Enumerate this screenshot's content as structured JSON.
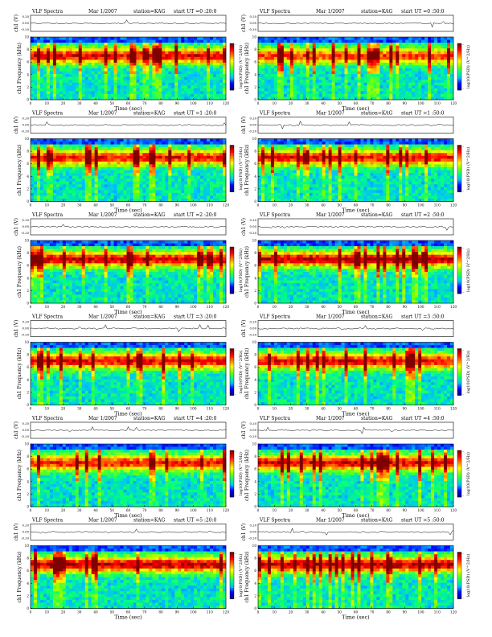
{
  "chart_data": [
    {
      "type": "heatmap",
      "title": "VLF Spectra",
      "date": "Mar 1/2007",
      "station": "station=KAG",
      "start_ut": "start  UT  =0 :20:0",
      "ch_label": "ch1 (V)",
      "ch_ticks": [
        "0.20",
        "0.00",
        "-0.20"
      ],
      "ylabel": "ch1 Frequency (kHz)",
      "xlabel": "Time (sec)",
      "xlim": [
        0,
        120
      ],
      "ylim": [
        0,
        10
      ],
      "xticks": [
        0,
        10,
        20,
        30,
        40,
        50,
        60,
        70,
        80,
        90,
        100,
        110,
        120
      ],
      "yticks": [
        0,
        2,
        4,
        6,
        8,
        10
      ],
      "colorbar_label": "log10(PSD) (V^2/Hz)",
      "colorbar_ticks": [
        "-",
        "-"
      ],
      "seed": 11,
      "bright": 0.45
    },
    {
      "type": "heatmap",
      "title": "VLF Spectra",
      "date": "Mar 1/2007",
      "station": "station=KAG",
      "start_ut": "start  UT  =0 :50:0",
      "ch_label": "ch1 (V)",
      "ch_ticks": [
        "0.20",
        "0.00",
        "-0.20"
      ],
      "ylabel": "ch1 Frequency (kHz)",
      "xlabel": "Time (sec)",
      "xlim": [
        0,
        120
      ],
      "ylim": [
        0,
        10
      ],
      "xticks": [
        0,
        10,
        20,
        30,
        40,
        50,
        60,
        70,
        80,
        90,
        100,
        110,
        120
      ],
      "yticks": [
        0,
        2,
        4,
        6,
        8,
        10
      ],
      "colorbar_label": "log10(PSD) (V^2/Hz)",
      "colorbar_ticks": [
        "-",
        "-"
      ],
      "seed": 12,
      "bright": 0.3
    },
    {
      "type": "heatmap",
      "title": "VLF Spectra",
      "date": "Mar 1/2007",
      "station": "station=KAG",
      "start_ut": "start  UT  =1 :20:0",
      "ch_label": "ch1 (V)",
      "ch_ticks": [
        "0.20",
        "0.00",
        "-0.20"
      ],
      "ylabel": "ch1 Frequency (kHz)",
      "xlabel": "Time (sec)",
      "xlim": [
        0,
        120
      ],
      "ylim": [
        0,
        10
      ],
      "xticks": [
        0,
        10,
        20,
        30,
        40,
        50,
        60,
        70,
        80,
        90,
        100,
        110,
        120
      ],
      "yticks": [
        0,
        2,
        4,
        6,
        8,
        10
      ],
      "colorbar_label": "log10(PSD) (V^2/Hz)",
      "colorbar_ticks": [
        "-",
        "-"
      ],
      "seed": 13,
      "bright": 0.4
    },
    {
      "type": "heatmap",
      "title": "VLF Spectra",
      "date": "Mar 1/2007",
      "station": "station=KAG",
      "start_ut": "start  UT  =1 :50:0",
      "ch_label": "ch1 (V)",
      "ch_ticks": [
        "0.20",
        "0.00",
        "-0.20"
      ],
      "ylabel": "ch1 Frequency (kHz)",
      "xlabel": "Time (sec)",
      "xlim": [
        0,
        120
      ],
      "ylim": [
        0,
        10
      ],
      "xticks": [
        0,
        10,
        20,
        30,
        40,
        50,
        60,
        70,
        80,
        90,
        100,
        110,
        120
      ],
      "yticks": [
        0,
        2,
        4,
        6,
        8,
        10
      ],
      "colorbar_label": "log10(PSD) (V^2/Hz)",
      "colorbar_ticks": [
        "-",
        "-"
      ],
      "seed": 14,
      "bright": 0.42
    },
    {
      "type": "heatmap",
      "title": "VLF Spectra",
      "date": "Mar 1/2007",
      "station": "station=KAG",
      "start_ut": "start  UT  =2 :20:0",
      "ch_label": "ch1 (V)",
      "ch_ticks": [
        "0.20",
        "0.00",
        "-0.20"
      ],
      "ylabel": "ch1 Frequency (kHz)",
      "xlabel": "Time (sec)",
      "xlim": [
        0,
        120
      ],
      "ylim": [
        0,
        10
      ],
      "xticks": [
        0,
        10,
        20,
        30,
        40,
        50,
        60,
        70,
        80,
        90,
        100,
        110,
        120
      ],
      "yticks": [
        0,
        2,
        4,
        6,
        8,
        10
      ],
      "colorbar_label": "log10(PSD) (V^2/Hz)",
      "colorbar_ticks": [
        "-",
        "-"
      ],
      "seed": 15,
      "bright": 0.5
    },
    {
      "type": "heatmap",
      "title": "VLF Spectra",
      "date": "Mar 1/2007",
      "station": "station=KAG",
      "start_ut": "start  UT  =2 :50:0",
      "ch_label": "ch1 (V)",
      "ch_ticks": [
        "0.20",
        "0.00",
        "-0.20"
      ],
      "ylabel": "ch1 Frequency (kHz)",
      "xlabel": "Time (sec)",
      "xlim": [
        0,
        120
      ],
      "ylim": [
        0,
        10
      ],
      "xticks": [
        0,
        10,
        20,
        30,
        40,
        50,
        60,
        70,
        80,
        90,
        100,
        110,
        120
      ],
      "yticks": [
        0,
        2,
        4,
        6,
        8,
        10
      ],
      "colorbar_label": "log10(PSD) (V^2/Hz)",
      "colorbar_ticks": [
        "-",
        "-"
      ],
      "seed": 16,
      "bright": 0.55
    },
    {
      "type": "heatmap",
      "title": "VLF Spectra",
      "date": "Mar 1/2007",
      "station": "station=KAG",
      "start_ut": "start  UT  =3 :20:0",
      "ch_label": "ch1 (V)",
      "ch_ticks": [
        "0.20",
        "0.00",
        "-0.20"
      ],
      "ylabel": "ch1 Frequency (kHz)",
      "xlabel": "Time (sec)",
      "xlim": [
        0,
        120
      ],
      "ylim": [
        0,
        10
      ],
      "xticks": [
        0,
        10,
        20,
        30,
        40,
        50,
        60,
        70,
        80,
        90,
        100,
        110,
        120
      ],
      "yticks": [
        0,
        2,
        4,
        6,
        8,
        10
      ],
      "colorbar_label": "log10(PSD) (V^2/Hz)",
      "colorbar_ticks": [
        "-",
        "-"
      ],
      "seed": 17,
      "bright": 0.45
    },
    {
      "type": "heatmap",
      "title": "VLF Spectra",
      "date": "Mar 1/2007",
      "station": "station=KAG",
      "start_ut": "start  UT  =3 :50:0",
      "ch_label": "ch1 (V)",
      "ch_ticks": [
        "0.20",
        "0.00",
        "-0.20"
      ],
      "ylabel": "ch1 Frequency (kHz)",
      "xlabel": "Time (sec)",
      "xlim": [
        0,
        120
      ],
      "ylim": [
        0,
        10
      ],
      "xticks": [
        0,
        10,
        20,
        30,
        40,
        50,
        60,
        70,
        80,
        90,
        100,
        110,
        120
      ],
      "yticks": [
        0,
        2,
        4,
        6,
        8,
        10
      ],
      "colorbar_label": "log10(PSD) (V^2/Hz)",
      "colorbar_ticks": [
        "-",
        "-"
      ],
      "seed": 18,
      "bright": 0.45
    },
    {
      "type": "heatmap",
      "title": "VLF Spectra",
      "date": "Mar 1/2007",
      "station": "station=KAG",
      "start_ut": "start  UT  =4 :20:0",
      "ch_label": "ch1 (V)",
      "ch_ticks": [
        "0.20",
        "0.00",
        "-0.20"
      ],
      "ylabel": "ch1 Frequency (kHz)",
      "xlabel": "Time (sec)",
      "xlim": [
        0,
        120
      ],
      "ylim": [
        0,
        10
      ],
      "xticks": [
        0,
        10,
        20,
        30,
        40,
        50,
        60,
        70,
        80,
        90,
        100,
        110,
        120
      ],
      "yticks": [
        0,
        2,
        4,
        6,
        8,
        10
      ],
      "colorbar_label": "log10(PSD) (V^2/Hz)",
      "colorbar_ticks": [
        "-",
        "-"
      ],
      "seed": 19,
      "bright": 0.38
    },
    {
      "type": "heatmap",
      "title": "VLF Spectra",
      "date": "Mar 1/2007",
      "station": "station=KAG",
      "start_ut": "start  UT  =4 :50:0",
      "ch_label": "ch1 (V)",
      "ch_ticks": [
        "0.20",
        "0.00",
        "-0.20"
      ],
      "ylabel": "ch1 Frequency (kHz)",
      "xlabel": "Time (sec)",
      "xlim": [
        0,
        120
      ],
      "ylim": [
        0,
        10
      ],
      "xticks": [
        0,
        10,
        20,
        30,
        40,
        50,
        60,
        70,
        80,
        90,
        100,
        110,
        120
      ],
      "yticks": [
        0,
        2,
        4,
        6,
        8,
        10
      ],
      "colorbar_label": "log10(PSD) (V^2/Hz)",
      "colorbar_ticks": [
        "-",
        "-"
      ],
      "seed": 20,
      "bright": 0.48
    },
    {
      "type": "heatmap",
      "title": "VLF Spectra",
      "date": "Mar 1/2007",
      "station": "station=KAG",
      "start_ut": "start  UT  =5 :20:0",
      "ch_label": "ch1 (V)",
      "ch_ticks": [
        "0.20",
        "0.00",
        "-0.20"
      ],
      "ylabel": "ch1 Frequency (kHz)",
      "xlabel": "Time (sec)",
      "xlim": [
        0,
        120
      ],
      "ylim": [
        0,
        10
      ],
      "xticks": [
        0,
        10,
        20,
        30,
        40,
        50,
        60,
        70,
        80,
        90,
        100,
        110,
        120
      ],
      "yticks": [
        0,
        2,
        4,
        6,
        8,
        10
      ],
      "colorbar_label": "log10(PSD) (V^2/Hz)",
      "colorbar_ticks": [
        "-",
        "-"
      ],
      "seed": 21,
      "bright": 0.55
    },
    {
      "type": "heatmap",
      "title": "VLF Spectra",
      "date": "Mar 1/2007",
      "station": "station=KAG",
      "start_ut": "start  UT  =5 :50:0",
      "ch_label": "ch1 (V)",
      "ch_ticks": [
        "0.20",
        "0.00",
        "-0.20"
      ],
      "ylabel": "ch1 Frequency (kHz)",
      "xlabel": "Time (sec)",
      "xlim": [
        0,
        120
      ],
      "ylim": [
        0,
        10
      ],
      "xticks": [
        0,
        10,
        20,
        30,
        40,
        50,
        60,
        70,
        80,
        90,
        100,
        110,
        120
      ],
      "yticks": [
        0,
        2,
        4,
        6,
        8,
        10
      ],
      "colorbar_label": "log10(PSD) (V^2/Hz)",
      "colorbar_ticks": [
        "-",
        "-"
      ],
      "seed": 22,
      "bright": 0.55
    }
  ],
  "colors": {
    "colormap": [
      "#00008f",
      "#0000ff",
      "#00bfff",
      "#00ff7f",
      "#7fff00",
      "#ffff00",
      "#ff7f00",
      "#ff0000",
      "#7f0000"
    ],
    "background": "#ffffff"
  }
}
